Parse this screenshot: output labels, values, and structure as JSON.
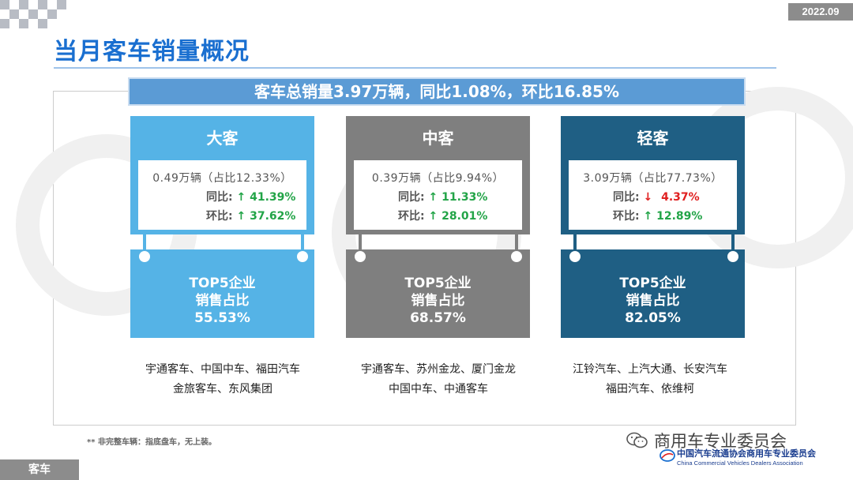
{
  "header": {
    "date": "2022.09",
    "title": "当月客车销量概况"
  },
  "summary": "客车总销量3.97万辆，同比1.08%，环比16.85%",
  "columns": [
    {
      "name": "大客",
      "color": "#55b3e6",
      "volume": "0.49万辆（占比12.33%）",
      "yoy_label": "同比:",
      "yoy_arrow": "↑",
      "yoy_value": "41.39%",
      "yoy_direction": "up",
      "mom_label": "环比:",
      "mom_arrow": "↑",
      "mom_value": "37.62%",
      "mom_direction": "up",
      "top5_line1": "TOP5企业",
      "top5_line2": "销售占比",
      "top5_value": "55.53%",
      "brands_line1": "宇通客车、中国中车、福田汽车",
      "brands_line2": "金旅客车、东风集团"
    },
    {
      "name": "中客",
      "color": "#7f7f7f",
      "volume": "0.39万辆（占比9.94%）",
      "yoy_label": "同比:",
      "yoy_arrow": "↑",
      "yoy_value": "11.33%",
      "yoy_direction": "up",
      "mom_label": "环比:",
      "mom_arrow": "↑",
      "mom_value": "28.01%",
      "mom_direction": "up",
      "top5_line1": "TOP5企业",
      "top5_line2": "销售占比",
      "top5_value": "68.57%",
      "brands_line1": "宇通客车、苏州金龙、厦门金龙",
      "brands_line2": "中国中车、中通客车"
    },
    {
      "name": "轻客",
      "color": "#1f5f84",
      "volume": "3.09万辆（占比77.73%）",
      "yoy_label": "同比:",
      "yoy_arrow": "↓",
      "yoy_value": "4.37%",
      "yoy_direction": "down",
      "mom_label": "环比:",
      "mom_arrow": "↑",
      "mom_value": "12.89%",
      "mom_direction": "up",
      "top5_line1": "TOP5企业",
      "top5_line2": "销售占比",
      "top5_value": "82.05%",
      "brands_line1": "江铃汽车、上汽大通、长安汽车",
      "brands_line2": "福田汽车、依维柯"
    }
  ],
  "footnote": "** 非完整车辆：指底盘车，无上装。",
  "section_tag": "客车",
  "wechat_account": "商用车专业委员会",
  "wechat_icon": "wechat-icon",
  "association_cn": "中国汽车流通协会商用车专业委员会",
  "association_en": "China Commercial Vehicles Dealers Association"
}
